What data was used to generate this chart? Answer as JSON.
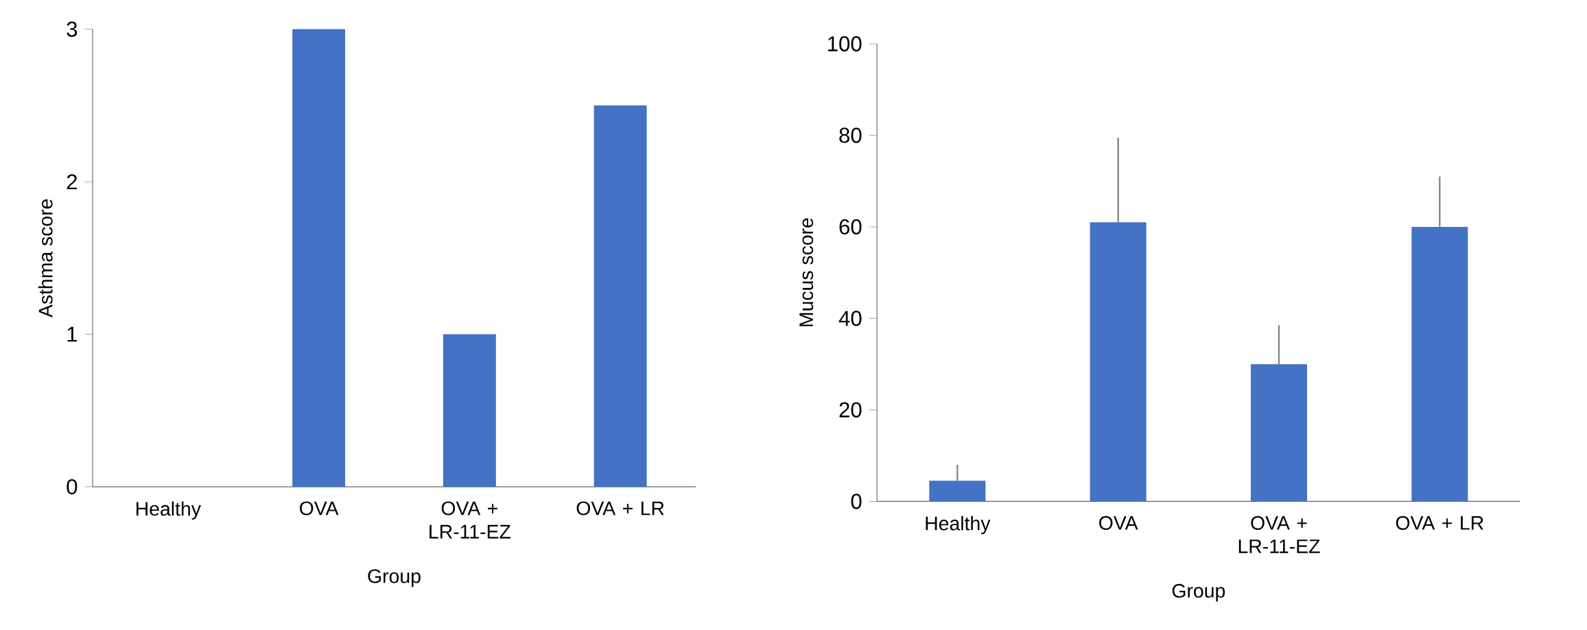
{
  "chart_data": [
    {
      "type": "bar",
      "categories": [
        "Healthy",
        "OVA",
        "OVA + LR-11-EZ",
        "OVA + LR"
      ],
      "values": [
        0,
        3,
        1,
        2.5
      ],
      "color": "#4472c4",
      "xlabel": "Group",
      "ylabel": "Asthma score",
      "ylim": [
        0,
        3
      ],
      "yticks": [
        0,
        1,
        2,
        3
      ],
      "grid": false
    },
    {
      "type": "bar",
      "categories": [
        "Healthy",
        "OVA",
        "OVA + LR-11-EZ",
        "OVA + LR"
      ],
      "values": [
        4.5,
        61,
        30,
        60
      ],
      "errors": [
        [
          4.5,
          8
        ],
        [
          61,
          79.5
        ],
        [
          30,
          38.5
        ],
        [
          60,
          71
        ]
      ],
      "color": "#4472c4",
      "xlabel": "Group",
      "ylabel": "Mucus score",
      "ylim": [
        0,
        100
      ],
      "yticks": [
        0,
        20,
        40,
        60,
        80,
        100
      ],
      "grid": false
    }
  ]
}
